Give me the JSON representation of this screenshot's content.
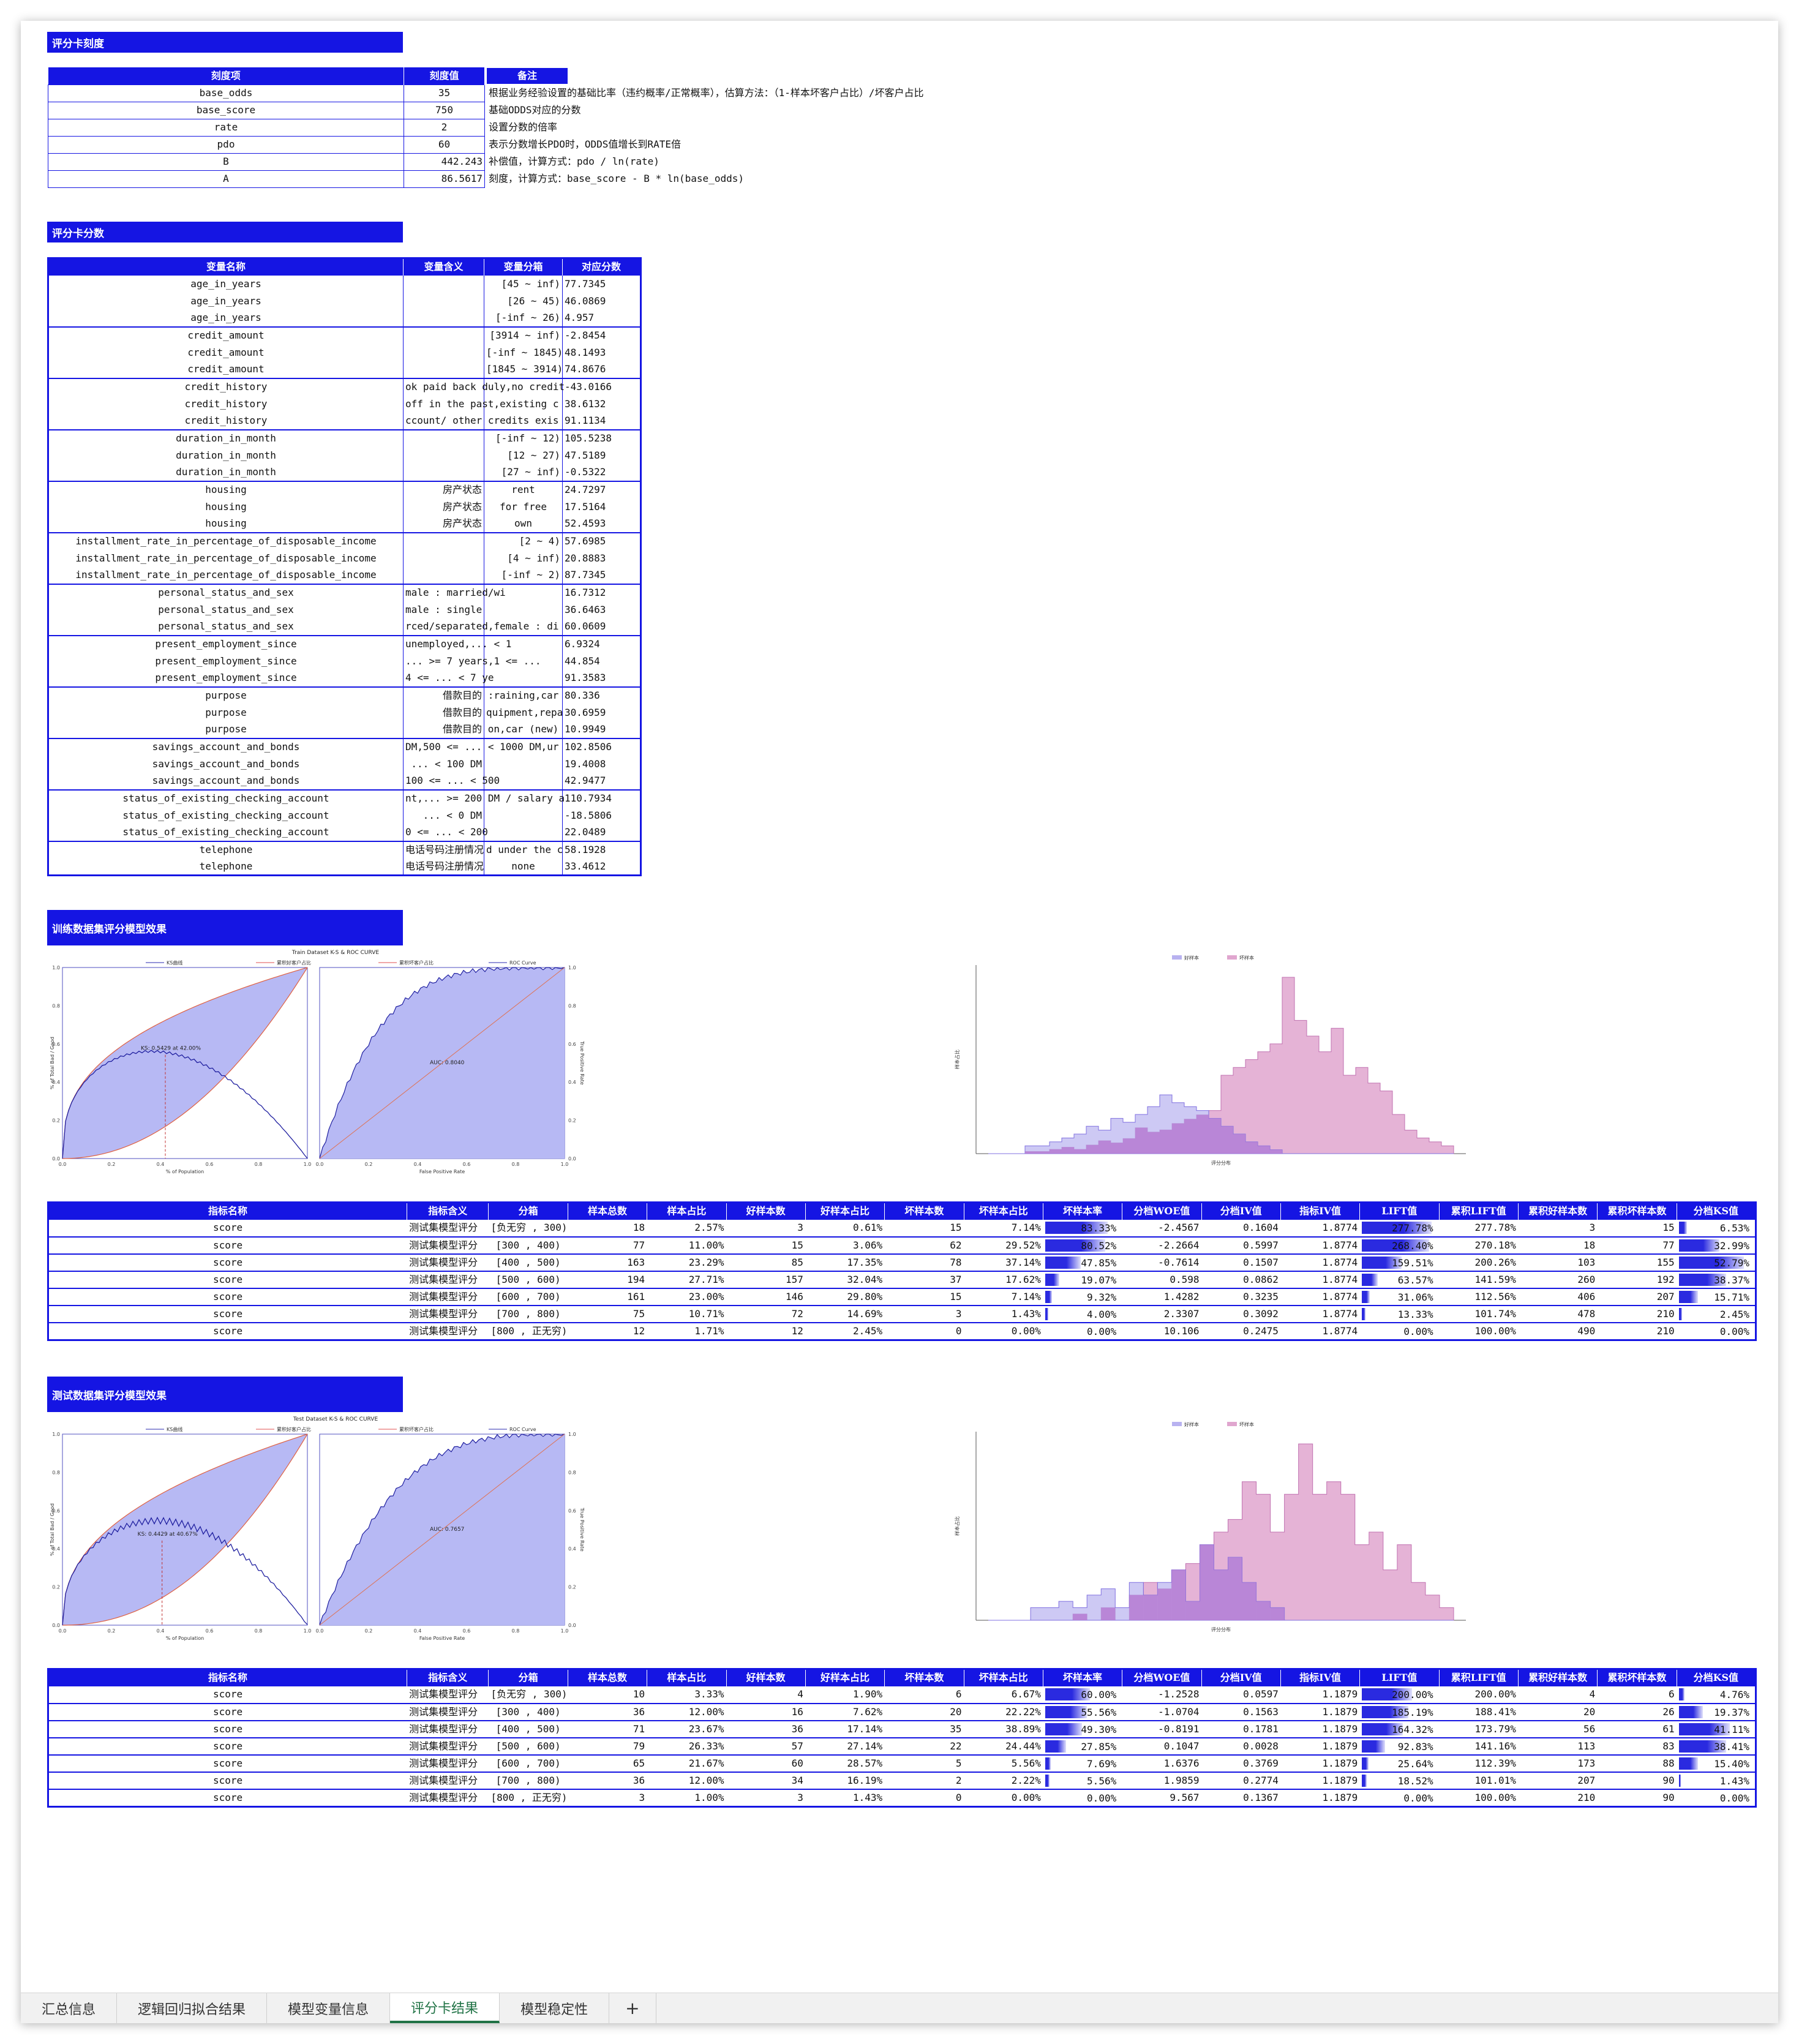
{
  "sections": {
    "params_title": "评分卡刻度",
    "scores_title": "评分卡分数",
    "train_title": "训练数据集评分模型效果",
    "test_title": "测试数据集评分模型效果"
  },
  "params": {
    "headers": [
      "刻度项",
      "刻度值",
      "备注"
    ],
    "rows": [
      {
        "item": "base_odds",
        "value": "35",
        "note": "根据业务经验设置的基础比率（违约概率/正常概率），估算方法：（1-样本坏客户占比）/坏客户占比"
      },
      {
        "item": "base_score",
        "value": "750",
        "note": "基础ODDS对应的分数"
      },
      {
        "item": "rate",
        "value": "2",
        "note": "设置分数的倍率"
      },
      {
        "item": "pdo",
        "value": "60",
        "note": "表示分数增长PDO时，ODDS值增长到RATE倍"
      },
      {
        "item": "B",
        "value": "442.243",
        "note": "补偿值，计算方式：pdo / ln(rate)"
      },
      {
        "item": "A",
        "value": "86.5617",
        "note": "刻度，计算方式：base_score - B * ln(base_odds)"
      }
    ]
  },
  "scorecard": {
    "headers": [
      "变量名称",
      "变量含义",
      "变量分箱",
      "对应分数"
    ],
    "rows": [
      {
        "name": "age_in_years",
        "meaning": "",
        "bin": "[45 ~ inf)",
        "score": "77.7345",
        "first": true
      },
      {
        "name": "age_in_years",
        "meaning": "",
        "bin": "[26 ~ 45)",
        "score": "46.0869"
      },
      {
        "name": "age_in_years",
        "meaning": "",
        "bin": "[-inf ~ 26)",
        "score": "4.957"
      },
      {
        "name": "credit_amount",
        "meaning": "",
        "bin": "[3914 ~ inf)",
        "score": "-2.8454",
        "first": true
      },
      {
        "name": "credit_amount",
        "meaning": "",
        "bin": "[-inf ~ 1845)",
        "score": "48.1493"
      },
      {
        "name": "credit_amount",
        "meaning": "",
        "bin": "[1845 ~ 3914)",
        "score": "74.8676"
      },
      {
        "name": "credit_history",
        "meaning": "ok paid back duly,no credit",
        "bin": "",
        "score": "-43.0166",
        "first": true
      },
      {
        "name": "credit_history",
        "meaning": "off in the past,existing c",
        "bin": "",
        "score": "38.6132"
      },
      {
        "name": "credit_history",
        "meaning": "ccount/ other credits exis",
        "bin": "",
        "score": "91.1134"
      },
      {
        "name": "duration_in_month",
        "meaning": "",
        "bin": "[-inf ~ 12)",
        "score": "105.5238",
        "first": true
      },
      {
        "name": "duration_in_month",
        "meaning": "",
        "bin": "[12 ~ 27)",
        "score": "47.5189"
      },
      {
        "name": "duration_in_month",
        "meaning": "",
        "bin": "[27 ~ inf)",
        "score": "-0.5322"
      },
      {
        "name": "housing",
        "meaning": "房产状态",
        "bin": "rent",
        "score": "24.7297",
        "first": true
      },
      {
        "name": "housing",
        "meaning": "房产状态",
        "bin": "for free",
        "score": "17.5164"
      },
      {
        "name": "housing",
        "meaning": "房产状态",
        "bin": "own",
        "score": "52.4593"
      },
      {
        "name": "installment_rate_in_percentage_of_disposable_income",
        "meaning": "",
        "bin": "[2 ~ 4)",
        "score": "57.6985",
        "first": true
      },
      {
        "name": "installment_rate_in_percentage_of_disposable_income",
        "meaning": "",
        "bin": "[4 ~ inf)",
        "score": "20.8883"
      },
      {
        "name": "installment_rate_in_percentage_of_disposable_income",
        "meaning": "",
        "bin": "[-inf ~ 2)",
        "score": "87.7345"
      },
      {
        "name": "personal_status_and_sex",
        "meaning": "male : married/wi",
        "bin": "",
        "score": "16.7312",
        "first": true
      },
      {
        "name": "personal_status_and_sex",
        "meaning": "male : single",
        "bin": "",
        "score": "36.6463"
      },
      {
        "name": "personal_status_and_sex",
        "meaning": "rced/separated,female : di",
        "bin": "",
        "score": "60.0609"
      },
      {
        "name": "present_employment_since",
        "meaning": "unemployed,... < 1",
        "bin": "",
        "score": "6.9324",
        "first": true
      },
      {
        "name": "present_employment_since",
        "meaning": "... >= 7 years,1 <= ...",
        "bin": "",
        "score": "44.854"
      },
      {
        "name": "present_employment_since",
        "meaning": "4 <= ... < 7 ye",
        "bin": "",
        "score": "91.3583"
      },
      {
        "name": "purpose",
        "meaning": "借款目的",
        "bin": ":raining,car",
        "score": "80.336",
        "first": true
      },
      {
        "name": "purpose",
        "meaning": "借款目的",
        "bin": "quipment,repa",
        "score": "30.6959"
      },
      {
        "name": "purpose",
        "meaning": "借款目的",
        "bin": "on,car (new)",
        "score": "10.9949"
      },
      {
        "name": "savings_account_and_bonds",
        "meaning": "DM,500 <= ... < 1000 DM,ur",
        "bin": "",
        "score": "102.8506",
        "first": true
      },
      {
        "name": "savings_account_and_bonds",
        "meaning": "... < 100 DM",
        "bin": "",
        "score": "19.4008"
      },
      {
        "name": "savings_account_and_bonds",
        "meaning": "100 <= ... < 500",
        "bin": "",
        "score": "42.9477"
      },
      {
        "name": "status_of_existing_checking_account",
        "meaning": "nt,... >= 200 DM / salary a",
        "bin": "",
        "score": "110.7934",
        "first": true
      },
      {
        "name": "status_of_existing_checking_account",
        "meaning": "... < 0 DM",
        "bin": "",
        "score": "-18.5806"
      },
      {
        "name": "status_of_existing_checking_account",
        "meaning": "0 <= ... < 200",
        "bin": "",
        "score": "22.0489"
      },
      {
        "name": "telephone",
        "meaning": "电话号码注册情况",
        "bin": "d under the c",
        "score": "58.1928",
        "first": true
      },
      {
        "name": "telephone",
        "meaning": "电话号码注册情况",
        "bin": "none",
        "score": "33.4612"
      }
    ]
  },
  "metrics": {
    "headers": [
      "指标名称",
      "指标含义",
      "分箱",
      "样本总数",
      "样本占比",
      "好样本数",
      "好样本占比",
      "坏样本数",
      "坏样本占比",
      "坏样本率",
      "分档WOE值",
      "分档IV值",
      "指标IV值",
      "LIFT值",
      "累积LIFT值",
      "累积好样本数",
      "累积坏样本数",
      "分档KS值"
    ],
    "train": [
      {
        "c": [
          "score",
          "测试集模型评分",
          "[负无穷 , 300)",
          "18",
          "2.57%",
          "3",
          "0.61%",
          "15",
          "7.14%",
          "83.33%",
          "-2.4567",
          "0.1604",
          "1.8774",
          "277.78%",
          "277.78%",
          "3",
          "15",
          "6.53%"
        ],
        "bad_rate": 83.33,
        "lift": 277.78,
        "ks": 6.53
      },
      {
        "c": [
          "score",
          "测试集模型评分",
          "[300 , 400)",
          "77",
          "11.00%",
          "15",
          "3.06%",
          "62",
          "29.52%",
          "80.52%",
          "-2.2664",
          "0.5997",
          "1.8774",
          "268.40%",
          "270.18%",
          "18",
          "77",
          "32.99%"
        ],
        "bad_rate": 80.52,
        "lift": 268.4,
        "ks": 32.99
      },
      {
        "c": [
          "score",
          "测试集模型评分",
          "[400 , 500)",
          "163",
          "23.29%",
          "85",
          "17.35%",
          "78",
          "37.14%",
          "47.85%",
          "-0.7614",
          "0.1507",
          "1.8774",
          "159.51%",
          "200.26%",
          "103",
          "155",
          "52.79%"
        ],
        "bad_rate": 47.85,
        "lift": 159.51,
        "ks": 52.79
      },
      {
        "c": [
          "score",
          "测试集模型评分",
          "[500 , 600)",
          "194",
          "27.71%",
          "157",
          "32.04%",
          "37",
          "17.62%",
          "19.07%",
          "0.598",
          "0.0862",
          "1.8774",
          "63.57%",
          "141.59%",
          "260",
          "192",
          "38.37%"
        ],
        "bad_rate": 19.07,
        "lift": 63.57,
        "ks": 38.37
      },
      {
        "c": [
          "score",
          "测试集模型评分",
          "[600 , 700)",
          "161",
          "23.00%",
          "146",
          "29.80%",
          "15",
          "7.14%",
          "9.32%",
          "1.4282",
          "0.3235",
          "1.8774",
          "31.06%",
          "112.56%",
          "406",
          "207",
          "15.71%"
        ],
        "bad_rate": 9.32,
        "lift": 31.06,
        "ks": 15.71
      },
      {
        "c": [
          "score",
          "测试集模型评分",
          "[700 , 800)",
          "75",
          "10.71%",
          "72",
          "14.69%",
          "3",
          "1.43%",
          "4.00%",
          "2.3307",
          "0.3092",
          "1.8774",
          "13.33%",
          "101.74%",
          "478",
          "210",
          "2.45%"
        ],
        "bad_rate": 4.0,
        "lift": 13.33,
        "ks": 2.45
      },
      {
        "c": [
          "score",
          "测试集模型评分",
          "[800 , 正无穷)",
          "12",
          "1.71%",
          "12",
          "2.45%",
          "0",
          "0.00%",
          "0.00%",
          "10.106",
          "0.2475",
          "1.8774",
          "0.00%",
          "100.00%",
          "490",
          "210",
          "0.00%"
        ],
        "bad_rate": 0,
        "lift": 0,
        "ks": 0
      }
    ],
    "test": [
      {
        "c": [
          "score",
          "测试集模型评分",
          "[负无穷 , 300)",
          "10",
          "3.33%",
          "4",
          "1.90%",
          "6",
          "6.67%",
          "60.00%",
          "-1.2528",
          "0.0597",
          "1.1879",
          "200.00%",
          "200.00%",
          "4",
          "6",
          "4.76%"
        ],
        "bad_rate": 60.0,
        "lift": 200.0,
        "ks": 4.76
      },
      {
        "c": [
          "score",
          "测试集模型评分",
          "[300 , 400)",
          "36",
          "12.00%",
          "16",
          "7.62%",
          "20",
          "22.22%",
          "55.56%",
          "-1.0704",
          "0.1563",
          "1.1879",
          "185.19%",
          "188.41%",
          "20",
          "26",
          "19.37%"
        ],
        "bad_rate": 55.56,
        "lift": 185.19,
        "ks": 19.37
      },
      {
        "c": [
          "score",
          "测试集模型评分",
          "[400 , 500)",
          "71",
          "23.67%",
          "36",
          "17.14%",
          "35",
          "38.89%",
          "49.30%",
          "-0.8191",
          "0.1781",
          "1.1879",
          "164.32%",
          "173.79%",
          "56",
          "61",
          "41.11%"
        ],
        "bad_rate": 49.3,
        "lift": 164.32,
        "ks": 41.11
      },
      {
        "c": [
          "score",
          "测试集模型评分",
          "[500 , 600)",
          "79",
          "26.33%",
          "57",
          "27.14%",
          "22",
          "24.44%",
          "27.85%",
          "0.1047",
          "0.0028",
          "1.1879",
          "92.83%",
          "141.16%",
          "113",
          "83",
          "38.41%"
        ],
        "bad_rate": 27.85,
        "lift": 92.83,
        "ks": 38.41
      },
      {
        "c": [
          "score",
          "测试集模型评分",
          "[600 , 700)",
          "65",
          "21.67%",
          "60",
          "28.57%",
          "5",
          "5.56%",
          "7.69%",
          "1.6376",
          "0.3769",
          "1.1879",
          "25.64%",
          "112.39%",
          "173",
          "88",
          "15.40%"
        ],
        "bad_rate": 7.69,
        "lift": 25.64,
        "ks": 15.4
      },
      {
        "c": [
          "score",
          "测试集模型评分",
          "[700 , 800)",
          "36",
          "12.00%",
          "34",
          "16.19%",
          "2",
          "2.22%",
          "5.56%",
          "1.9859",
          "0.2774",
          "1.1879",
          "18.52%",
          "101.01%",
          "207",
          "90",
          "1.43%"
        ],
        "bad_rate": 5.56,
        "lift": 18.52,
        "ks": 1.43
      },
      {
        "c": [
          "score",
          "测试集模型评分",
          "[800 , 正无穷)",
          "3",
          "1.00%",
          "3",
          "1.43%",
          "0",
          "0.00%",
          "0.00%",
          "9.567",
          "0.1367",
          "1.1879",
          "0.00%",
          "100.00%",
          "210",
          "90",
          "0.00%"
        ],
        "bad_rate": 0,
        "lift": 0,
        "ks": 0
      }
    ]
  },
  "charts": {
    "train": {
      "ksroc_title": "Train Dataset K-S & ROC CURVE",
      "ks_label": "KS: 0.5429 at 42.00%",
      "auc_label": "AUC: 0.8040",
      "legend": [
        "KS曲线",
        "累积好客户占比",
        "累积坏客户占比",
        "ROC Curve"
      ],
      "hist_legend": [
        "好样本",
        "坏样本"
      ]
    },
    "test": {
      "ksroc_title": "Test Dataset K-S & ROC CURVE",
      "ks_label": "KS: 0.4429 at 40.67%",
      "auc_label": "AUC: 0.7657",
      "legend": [
        "KS曲线",
        "累积好客户占比",
        "累积坏客户占比",
        "ROC Curve"
      ],
      "hist_legend": [
        "好样本",
        "坏样本"
      ]
    },
    "axes": {
      "ks_x": "% of Population",
      "ks_y": "% of Total Bad / Good",
      "roc_x": "False Positive Rate",
      "roc_y": "True Positive Rate",
      "hist_x": "评分分布",
      "hist_y": "样本占比"
    },
    "chart_data": [
      {
        "type": "line",
        "title": "Train Dataset K-S & ROC CURVE",
        "series": [
          {
            "name": "KS曲线",
            "peak": 0.5429,
            "peak_at": 0.42
          },
          {
            "name": "ROC Curve",
            "auc": 0.804
          }
        ],
        "xlim": [
          0,
          1
        ],
        "ylim": [
          0,
          1
        ]
      },
      {
        "type": "bar",
        "series": [
          {
            "name": "好样本"
          },
          {
            "name": "坏样本"
          }
        ]
      },
      {
        "type": "line",
        "title": "Test Dataset K-S & ROC CURVE",
        "series": [
          {
            "name": "KS曲线",
            "peak": 0.4429,
            "peak_at": 0.4067
          },
          {
            "name": "ROC Curve",
            "auc": 0.7657
          }
        ],
        "xlim": [
          0,
          1
        ],
        "ylim": [
          0,
          1
        ]
      },
      {
        "type": "bar",
        "series": [
          {
            "name": "好样本"
          },
          {
            "name": "坏样本"
          }
        ]
      }
    ]
  },
  "tabs": [
    "汇总信息",
    "逻辑回归拟合结果",
    "模型变量信息",
    "评分卡结果",
    "模型稳定性",
    "+"
  ],
  "active_tab": 3,
  "colors": {
    "header": "#1515e3",
    "bar": "#2a2ae0",
    "good_hist": "#b8b2f0",
    "bad_hist": "#e0a6cf",
    "overlap": "#b57ad2"
  }
}
